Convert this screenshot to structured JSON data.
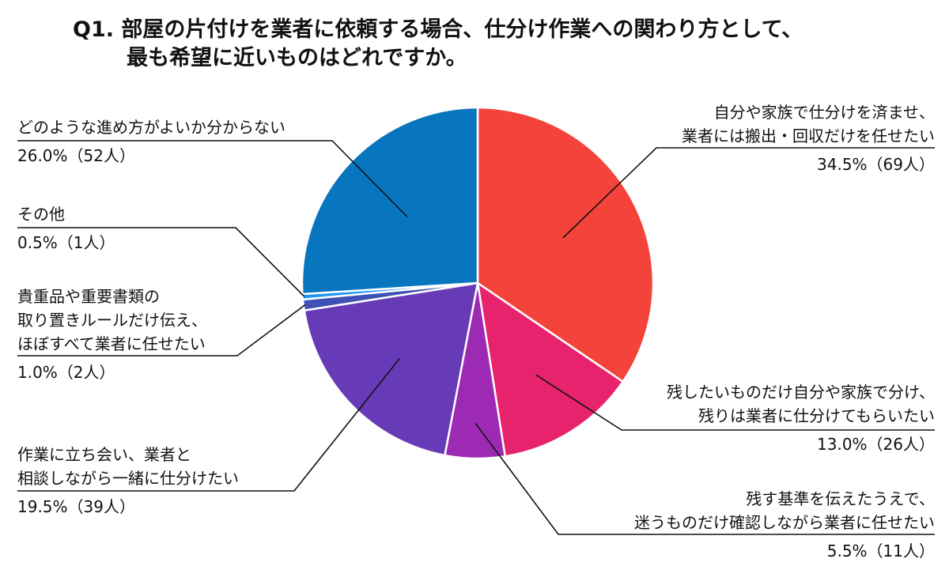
{
  "chart_data": {
    "type": "pie",
    "title": "Q1. 部屋の片付けを業者に依頼する場合、仕分け作業への関わり方として、",
    "title_line2": "最も希望に近いものはどれですか。",
    "slices": [
      {
        "label": [
          "自分や家族で仕分けを済ませ、",
          "業者には搬出・回収だけを任せたい"
        ],
        "value": 34.5,
        "count_label": "34.5%（69人）",
        "color": "#f4433a"
      },
      {
        "label": [
          "残したいものだけ自分や家族で分け、",
          "残りは業者に仕分けてもらいたい"
        ],
        "value": 13.0,
        "count_label": "13.0%（26人）",
        "color": "#e8236e"
      },
      {
        "label": [
          "残す基準を伝えたうえで、",
          "迷うものだけ確認しながら業者に任せたい"
        ],
        "value": 5.5,
        "count_label": "5.5%（11人）",
        "color": "#9c2ab2"
      },
      {
        "label": [
          "作業に立ち会い、業者と",
          "相談しながら一緒に仕分けたい"
        ],
        "value": 19.5,
        "count_label": "19.5%（39人）",
        "color": "#673bb7"
      },
      {
        "label": [
          "貴重品や重要書類の",
          "取り置きルールだけ伝え、",
          "ほぼすべて業者に任せたい"
        ],
        "value": 1.0,
        "count_label": "1.0%（2人）",
        "color": "#3f51b5"
      },
      {
        "label": [
          "その他"
        ],
        "value": 0.5,
        "count_label": "0.5%（1人）",
        "color": "#2196f3"
      },
      {
        "label": [
          "どのような進め方がよいか分からない"
        ],
        "value": 26.0,
        "count_label": "26.0%（52人）",
        "color": "#0876bf"
      }
    ]
  }
}
